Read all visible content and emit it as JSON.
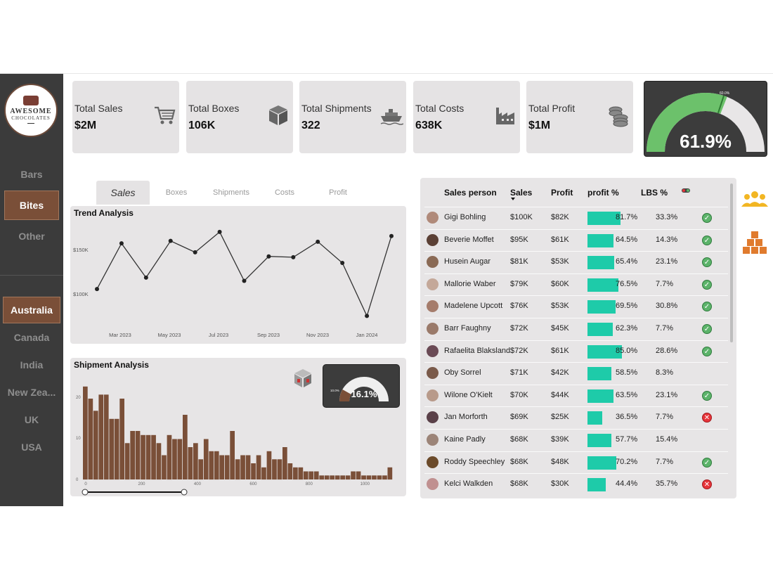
{
  "brand": {
    "line1": "AWESOME",
    "line2": "CHOCOLATES"
  },
  "nav": [
    {
      "label": "Bars",
      "active": false
    },
    {
      "label": "Bites",
      "active": true
    },
    {
      "label": "Other",
      "active": false
    }
  ],
  "countries": [
    {
      "label": "Australia",
      "active": true
    },
    {
      "label": "Canada",
      "active": false
    },
    {
      "label": "India",
      "active": false
    },
    {
      "label": "New Zea...",
      "active": false
    },
    {
      "label": "UK",
      "active": false
    },
    {
      "label": "USA",
      "active": false
    }
  ],
  "kpis": [
    {
      "label": "Total Sales",
      "value": "$2M",
      "icon": "cart-icon"
    },
    {
      "label": "Total Boxes",
      "value": "106K",
      "icon": "box-icon"
    },
    {
      "label": "Total Shipments",
      "value": "322",
      "icon": "ship-icon"
    },
    {
      "label": "Total Costs",
      "value": "638K",
      "icon": "factory-icon"
    },
    {
      "label": "Total Profit",
      "value": "$1M",
      "icon": "coins-icon"
    }
  ],
  "profit_gauge": {
    "value_label": "61.9%",
    "fraction": 0.619,
    "target_label": "60.0%",
    "fill_color": "#6cc16b"
  },
  "tabs": [
    {
      "label": "Sales",
      "active": true
    },
    {
      "label": "Boxes",
      "active": false
    },
    {
      "label": "Shipments",
      "active": false
    },
    {
      "label": "Costs",
      "active": false
    },
    {
      "label": "Profit",
      "active": false
    }
  ],
  "trend": {
    "title": "Trend Analysis",
    "x_ticks": [
      "Mar 2023",
      "May 2023",
      "Jul 2023",
      "Sep 2023",
      "Nov 2023",
      "Jan 2024"
    ],
    "y_ticks": [
      "$150K",
      "$100K"
    ]
  },
  "shipment": {
    "title": "Shipment Analysis",
    "x_ticks": [
      "0",
      "200",
      "400",
      "600",
      "800",
      "1000"
    ],
    "y_ticks": [
      "20",
      "10",
      "0"
    ],
    "gauge_label": "16.1%",
    "gauge_min_label": "10.0%",
    "gauge_fraction": 0.161,
    "bar_color": "#7a4f38"
  },
  "chart_data": [
    {
      "type": "line",
      "title": "Trend Analysis",
      "x": [
        "Feb 2023",
        "Mar 2023",
        "Apr 2023",
        "May 2023",
        "Jun 2023",
        "Jul 2023",
        "Aug 2023",
        "Sep 2023",
        "Oct 2023",
        "Nov 2023",
        "Dec 2023",
        "Jan 2024",
        "Feb 2024"
      ],
      "y": [
        93000,
        149000,
        107000,
        152000,
        138000,
        163000,
        103000,
        133000,
        132000,
        151000,
        125000,
        60000,
        158000
      ],
      "ylim": [
        50000,
        175000
      ],
      "y_ticks": [
        100000,
        150000
      ]
    },
    {
      "type": "bar",
      "title": "Shipment Analysis",
      "x_range": [
        0,
        1100
      ],
      "ylim": [
        0,
        24
      ],
      "values": [
        23,
        20,
        17,
        21,
        21,
        15,
        15,
        20,
        9,
        12,
        12,
        11,
        11,
        11,
        9,
        6,
        11,
        10,
        10,
        16,
        8,
        9,
        5,
        10,
        7,
        7,
        6,
        6,
        12,
        5,
        6,
        6,
        4,
        6,
        3,
        7,
        5,
        5,
        8,
        4,
        3,
        3,
        2,
        2,
        2,
        1,
        1,
        1,
        1,
        1,
        1,
        2,
        2,
        1,
        1,
        1,
        1,
        1,
        3
      ]
    }
  ],
  "table": {
    "headers": {
      "name": "Sales person",
      "sales": "Sales",
      "profit": "Profit",
      "pct": "profit %",
      "lbs": "LBS %"
    },
    "rows": [
      {
        "name": "Gigi Bohling",
        "sales": "$100K",
        "profit": "$82K",
        "pct": "81.7%",
        "pct_value": 0.817,
        "lbs": "33.3%",
        "status": "check",
        "avatar_color": "#b08a7a"
      },
      {
        "name": "Beverie Moffet",
        "sales": "$95K",
        "profit": "$61K",
        "pct": "64.5%",
        "pct_value": 0.645,
        "lbs": "14.3%",
        "status": "check",
        "avatar_color": "#5b4035"
      },
      {
        "name": "Husein Augar",
        "sales": "$81K",
        "profit": "$53K",
        "pct": "65.4%",
        "pct_value": 0.654,
        "lbs": "23.1%",
        "status": "check",
        "avatar_color": "#8a6a55"
      },
      {
        "name": "Mallorie Waber",
        "sales": "$79K",
        "profit": "$60K",
        "pct": "76.5%",
        "pct_value": 0.765,
        "lbs": "7.7%",
        "status": "check",
        "avatar_color": "#c4a899"
      },
      {
        "name": "Madelene Upcott",
        "sales": "$76K",
        "profit": "$53K",
        "pct": "69.5%",
        "pct_value": 0.695,
        "lbs": "30.8%",
        "status": "check",
        "avatar_color": "#a57c6b"
      },
      {
        "name": "Barr Faughny",
        "sales": "$72K",
        "profit": "$45K",
        "pct": "62.3%",
        "pct_value": 0.623,
        "lbs": "7.7%",
        "status": "check",
        "avatar_color": "#9a7a6a"
      },
      {
        "name": "Rafaelita Blaksland",
        "sales": "$72K",
        "profit": "$61K",
        "pct": "85.0%",
        "pct_value": 0.85,
        "lbs": "28.6%",
        "status": "check",
        "avatar_color": "#6a4a55"
      },
      {
        "name": "Oby Sorrel",
        "sales": "$71K",
        "profit": "$42K",
        "pct": "58.5%",
        "pct_value": 0.585,
        "lbs": "8.3%",
        "status": "none",
        "avatar_color": "#7a5a4a"
      },
      {
        "name": "Wilone O'Kielt",
        "sales": "$70K",
        "profit": "$44K",
        "pct": "63.5%",
        "pct_value": 0.635,
        "lbs": "23.1%",
        "status": "check",
        "avatar_color": "#b89a8a"
      },
      {
        "name": "Jan Morforth",
        "sales": "$69K",
        "profit": "$25K",
        "pct": "36.5%",
        "pct_value": 0.365,
        "lbs": "7.7%",
        "status": "cross",
        "avatar_color": "#5a4048"
      },
      {
        "name": "Kaine Padly",
        "sales": "$68K",
        "profit": "$39K",
        "pct": "57.7%",
        "pct_value": 0.577,
        "lbs": "15.4%",
        "status": "none",
        "avatar_color": "#9c8478"
      },
      {
        "name": "Roddy Speechley",
        "sales": "$68K",
        "profit": "$48K",
        "pct": "70.2%",
        "pct_value": 0.702,
        "lbs": "7.7%",
        "status": "check",
        "avatar_color": "#6b4a2a"
      },
      {
        "name": "Kelci Walkden",
        "sales": "$68K",
        "profit": "$30K",
        "pct": "44.4%",
        "pct_value": 0.444,
        "lbs": "35.7%",
        "status": "cross",
        "avatar_color": "#c09090"
      }
    ]
  },
  "side_icons": [
    "people-group-icon",
    "boxes-stack-icon"
  ]
}
